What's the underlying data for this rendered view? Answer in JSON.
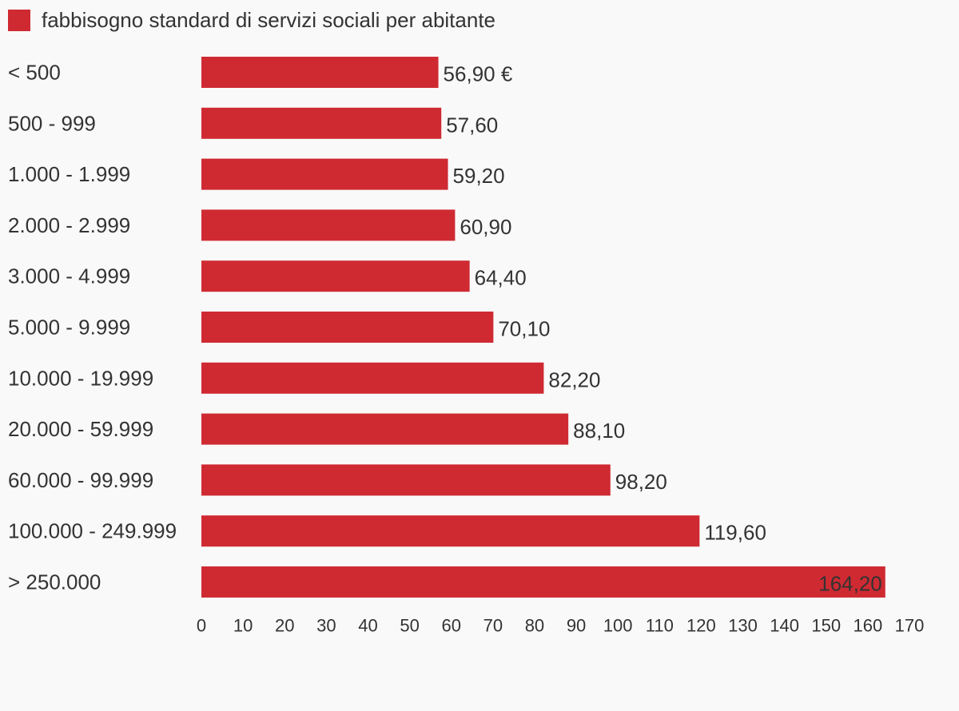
{
  "legend": {
    "label": "fabbisogno standard di servizi sociali per abitante",
    "color": "#cf2a32"
  },
  "chart_data": {
    "type": "bar",
    "orientation": "horizontal",
    "categories": [
      "< 500",
      "500 - 999",
      "1.000 - 1.999",
      "2.000 - 2.999",
      "3.000 - 4.999",
      "5.000 - 9.999",
      "10.000 - 19.999",
      "20.000 - 59.999",
      "60.000 - 99.999",
      "100.000 - 249.999",
      "> 250.000"
    ],
    "series": [
      {
        "name": "fabbisogno standard di servizi sociali per abitante",
        "values": [
          56.9,
          57.6,
          59.2,
          60.9,
          64.4,
          70.1,
          82.2,
          88.1,
          98.2,
          119.6,
          164.2
        ],
        "color": "#cf2a32"
      }
    ],
    "data_labels": [
      "56,90 €",
      "57,60",
      "59,20",
      "60,90",
      "64,40",
      "70,10",
      "82,20",
      "88,10",
      "98,20",
      "119,60",
      "164,20"
    ],
    "xlim": [
      0,
      170
    ],
    "x_ticks": [
      0,
      10,
      20,
      30,
      40,
      50,
      60,
      70,
      80,
      90,
      100,
      110,
      120,
      130,
      140,
      150,
      160,
      170
    ],
    "grid": false,
    "legend_position": "top-left"
  }
}
